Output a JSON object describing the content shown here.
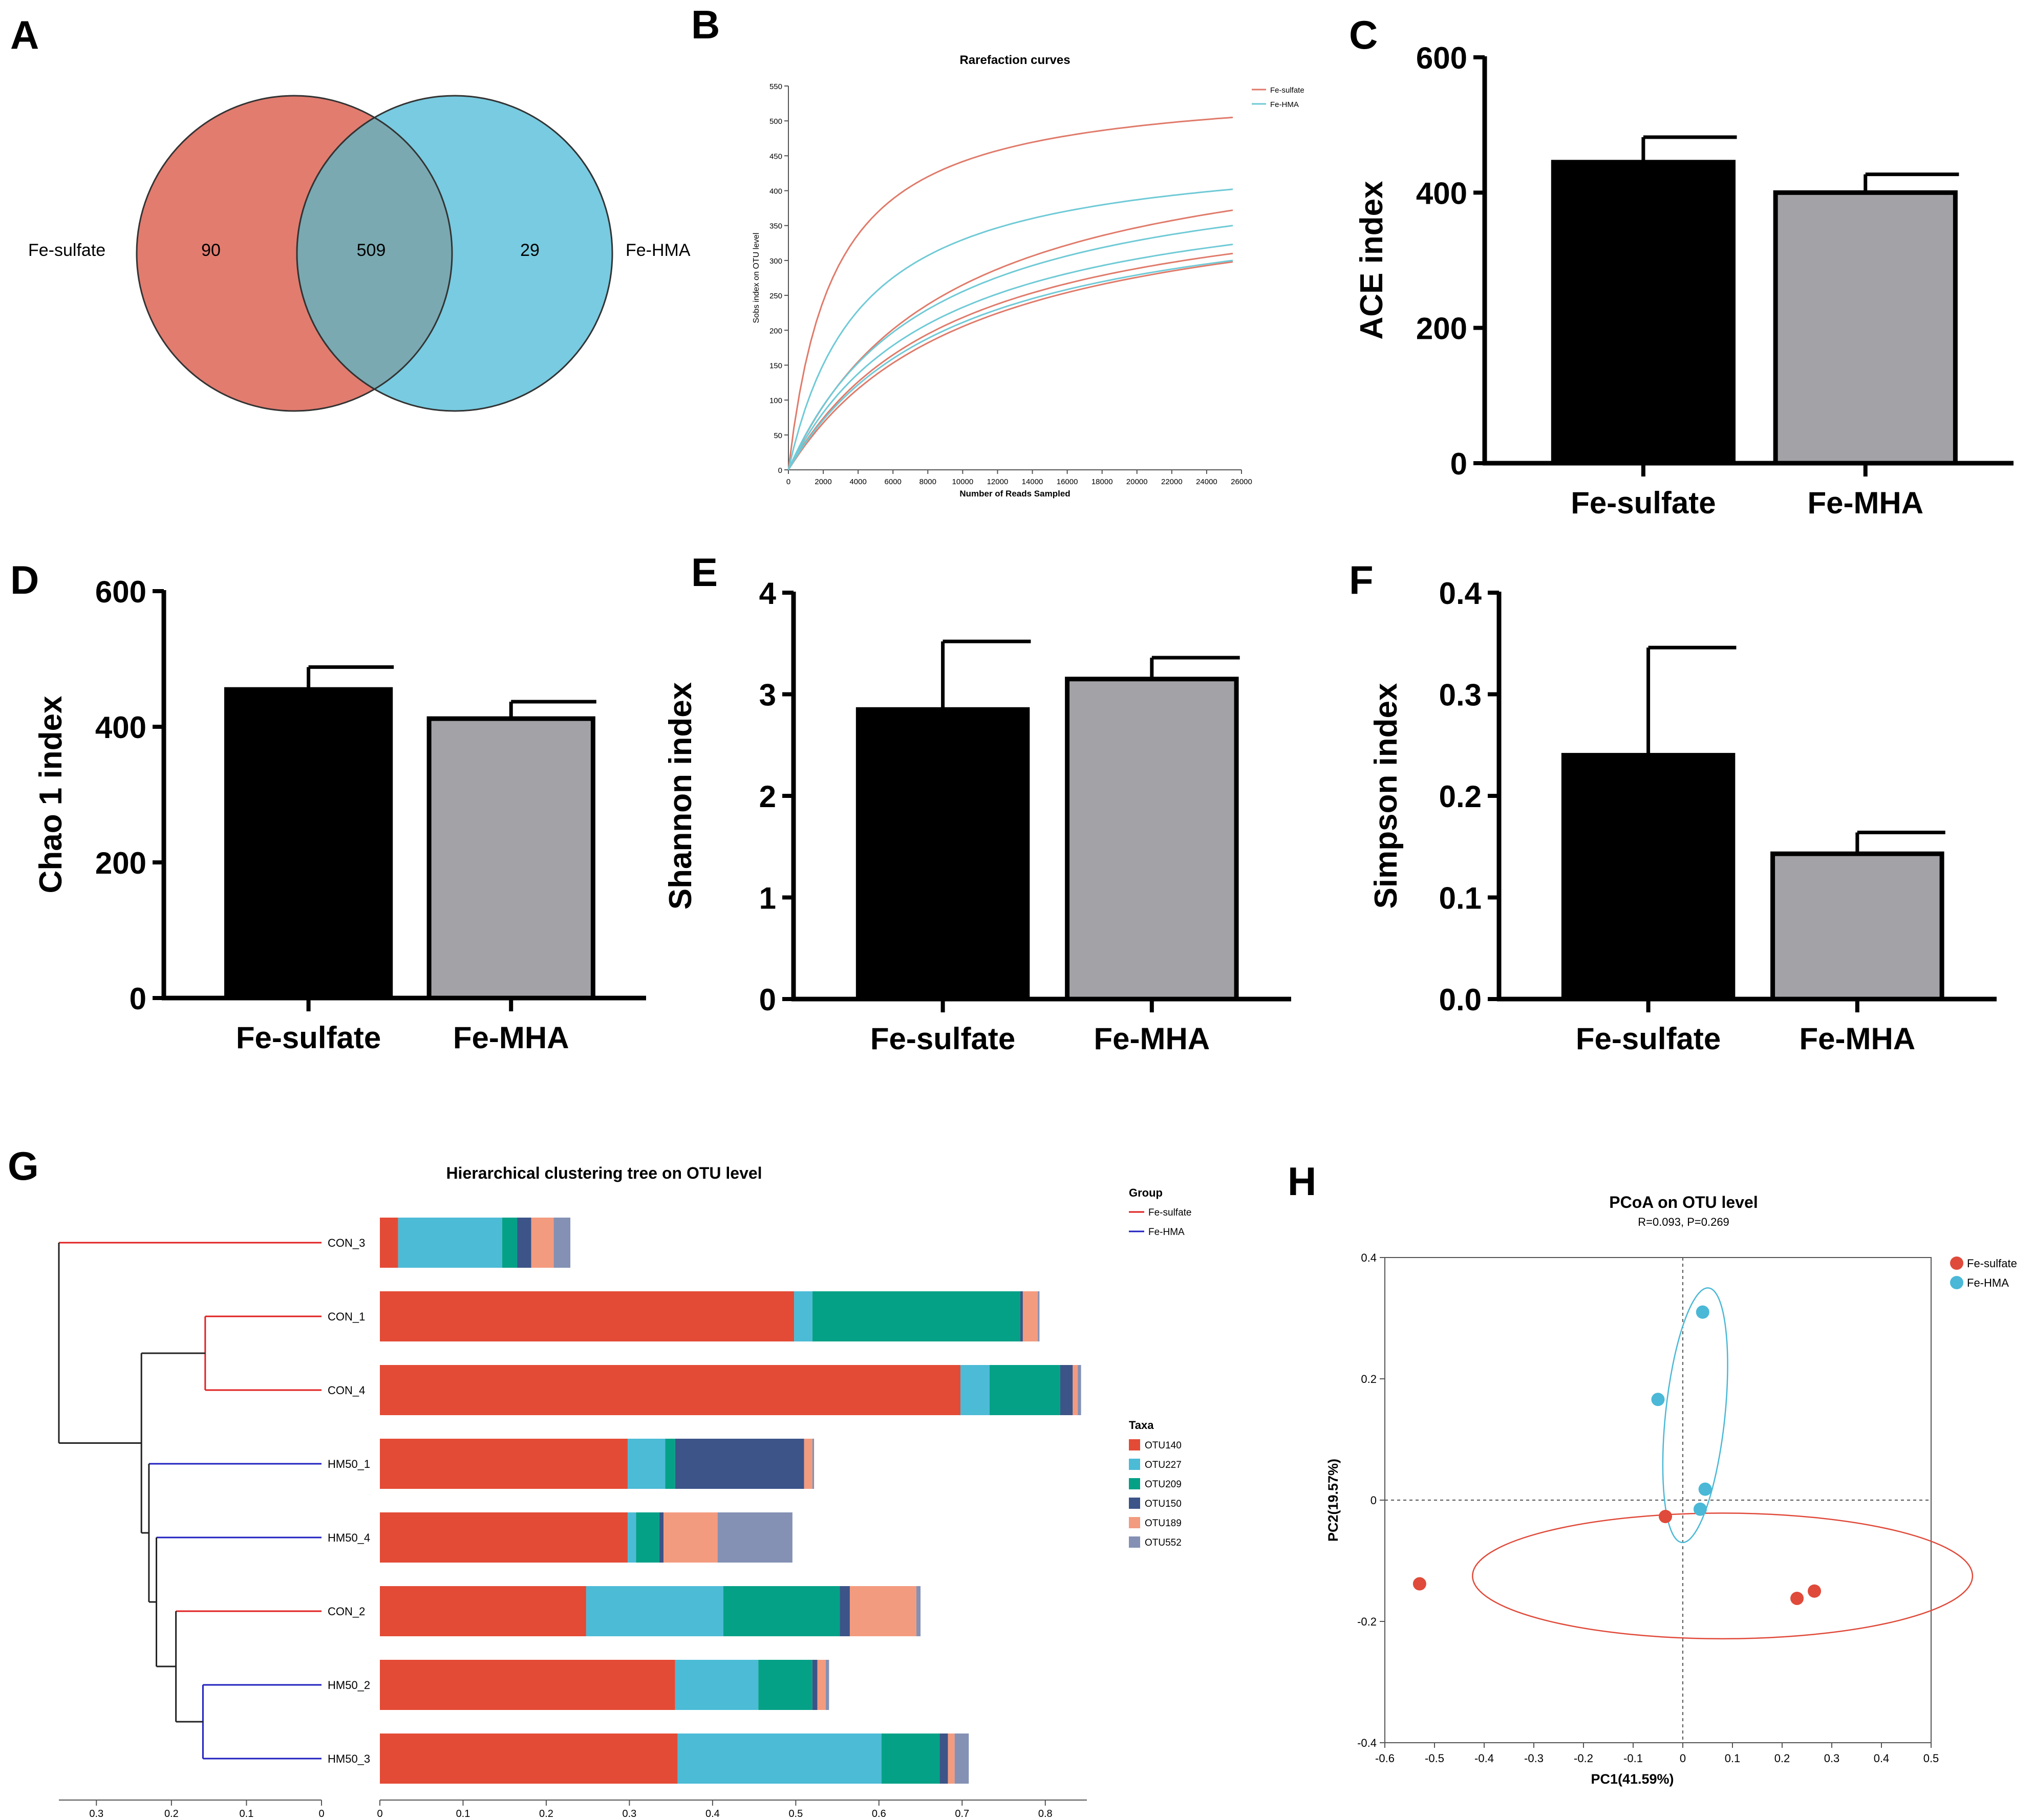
{
  "panel_labels": [
    "A",
    "B",
    "C",
    "D",
    "E",
    "F",
    "G",
    "H"
  ],
  "colors": {
    "fe_sulfate": "#e27c6f",
    "fe_mha": "#78cbe0",
    "overlap": "#7aa9b2",
    "bar_black": "#000000",
    "bar_gray": "#a3a3a7",
    "red_curve": "#e07a6a",
    "cyan_curve": "#6fcad6",
    "tree_red": "#e02020",
    "tree_blue": "#2020c0",
    "pcoa_red": "#e04a3a",
    "pcoa_cyan": "#4ab8d6"
  },
  "venn": {
    "left_label": "Fe-sulfate",
    "right_label": "Fe-HMA",
    "left_only": "90",
    "overlap": "509",
    "right_only": "29"
  },
  "chart_data": [
    {
      "id": "B",
      "type": "line",
      "title": "Rarefaction curves",
      "xlabel": "Number of Reads Sampled",
      "ylabel": "Sobs index on OTU level",
      "xlim": [
        0,
        26000
      ],
      "ylim": [
        0,
        550
      ],
      "xticks": [
        0,
        2000,
        4000,
        6000,
        8000,
        10000,
        12000,
        14000,
        16000,
        18000,
        20000,
        22000,
        24000,
        26000
      ],
      "yticks": [
        0,
        50,
        100,
        150,
        200,
        250,
        300,
        350,
        400,
        450,
        500,
        550
      ],
      "legend": [
        "Fe-sulfate",
        "Fe-HMA"
      ],
      "series": [
        {
          "name": "Fe-sulfate",
          "final": 505,
          "half": [
            2600,
            2600
          ]
        },
        {
          "name": "Fe-sulfate",
          "final": 372,
          "half": [
            9000,
            9000
          ]
        },
        {
          "name": "Fe-sulfate",
          "final": 310,
          "half": [
            9500,
            9500
          ]
        },
        {
          "name": "Fe-sulfate",
          "final": 298,
          "half": [
            10500,
            10500
          ]
        },
        {
          "name": "Fe-HMA",
          "final": 402,
          "half": [
            4200,
            4200
          ]
        },
        {
          "name": "Fe-HMA",
          "final": 350,
          "half": [
            8000,
            8000
          ]
        },
        {
          "name": "Fe-HMA",
          "final": 323,
          "half": [
            8500,
            8500
          ]
        },
        {
          "name": "Fe-HMA",
          "final": 300,
          "half": [
            9500,
            9500
          ]
        }
      ]
    },
    {
      "id": "C",
      "type": "bar",
      "categories": [
        "Fe-sulfate",
        "Fe-MHA"
      ],
      "values": [
        445,
        400
      ],
      "errors": [
        37,
        27
      ],
      "ylabel": "ACE index",
      "ylim": [
        0,
        600
      ],
      "yticks": [
        "0",
        "200",
        "400",
        "600"
      ]
    },
    {
      "id": "D",
      "type": "bar",
      "categories": [
        "Fe-sulfate",
        "Fe-MHA"
      ],
      "values": [
        455,
        412
      ],
      "errors": [
        33,
        25
      ],
      "ylabel": "Chao 1 index",
      "ylim": [
        0,
        600
      ],
      "yticks": [
        "0",
        "200",
        "400",
        "600"
      ]
    },
    {
      "id": "E",
      "type": "bar",
      "categories": [
        "Fe-sulfate",
        "Fe-MHA"
      ],
      "values": [
        2.85,
        3.15
      ],
      "errors": [
        0.67,
        0.21
      ],
      "ylabel": "Shannon index",
      "ylim": [
        0,
        4
      ],
      "yticks": [
        "0",
        "1",
        "2",
        "3",
        "4"
      ]
    },
    {
      "id": "F",
      "type": "bar",
      "categories": [
        "Fe-sulfate",
        "Fe-MHA"
      ],
      "values": [
        0.24,
        0.143
      ],
      "errors": [
        0.106,
        0.021
      ],
      "ylabel": "Simpson index",
      "ylim": [
        0,
        0.4
      ],
      "yticks": [
        "0.0",
        "0.1",
        "0.2",
        "0.3",
        "0.4"
      ]
    },
    {
      "id": "G",
      "type": "bar",
      "orientation": "horizontal-stacked",
      "title": "Hierarchical clustering tree on OTU level",
      "categories": [
        "CON_3",
        "CON_1",
        "CON_4",
        "HM50_1",
        "HM50_4",
        "CON_2",
        "HM50_2",
        "HM50_3"
      ],
      "series": [
        {
          "name": "OTU140",
          "color": "#e34b36",
          "values": [
            0.022,
            0.498,
            0.698,
            0.298,
            0.298,
            0.248,
            0.355,
            0.358
          ]
        },
        {
          "name": "OTU227",
          "color": "#4cbbd6",
          "values": [
            0.125,
            0.022,
            0.035,
            0.045,
            0.01,
            0.165,
            0.1,
            0.245
          ]
        },
        {
          "name": "OTU209",
          "color": "#05a187",
          "values": [
            0.018,
            0.25,
            0.085,
            0.012,
            0.028,
            0.14,
            0.065,
            0.07
          ]
        },
        {
          "name": "OTU150",
          "color": "#3c5488",
          "values": [
            0.017,
            0.003,
            0.015,
            0.155,
            0.005,
            0.012,
            0.006,
            0.01
          ]
        },
        {
          "name": "OTU189",
          "color": "#f39b7f",
          "values": [
            0.027,
            0.018,
            0.006,
            0.01,
            0.065,
            0.08,
            0.01,
            0.008
          ]
        },
        {
          "name": "OTU552",
          "color": "#8491b4",
          "values": [
            0.02,
            0.002,
            0.004,
            0.002,
            0.09,
            0.005,
            0.004,
            0.017
          ]
        }
      ],
      "xticks": [
        "0",
        "0.1",
        "0.2",
        "0.3",
        "0.4",
        "0.5",
        "0.6",
        "0.7",
        "0.8"
      ],
      "tree_xticks": [
        "0.3",
        "0.2",
        "0.1",
        "0"
      ],
      "group_legend_title": "Group",
      "group_legend": [
        "Fe-sulfate",
        "Fe-HMA"
      ],
      "taxa_legend_title": "Taxa"
    },
    {
      "id": "H",
      "type": "scatter",
      "title": "PCoA on OTU level",
      "subtitle": "R=0.093, P=0.269",
      "xlabel": "PC1(41.59%)",
      "ylabel": "PC2(19.57%)",
      "xlim": [
        -0.6,
        0.5
      ],
      "ylim": [
        -0.4,
        0.4
      ],
      "xticks": [
        "-0.6",
        "-0.5",
        "-0.4",
        "-0.3",
        "-0.2",
        "-0.1",
        "0",
        "0.1",
        "0.2",
        "0.3",
        "0.4",
        "0.5"
      ],
      "yticks": [
        "-0.4",
        "-0.2",
        "0",
        "0.2",
        "0.4"
      ],
      "legend": [
        "Fe-sulfate",
        "Fe-HMA"
      ],
      "series": [
        {
          "name": "Fe-sulfate",
          "points": [
            [
              -0.53,
              -0.138
            ],
            [
              -0.035,
              -0.027
            ],
            [
              0.23,
              -0.162
            ],
            [
              0.265,
              -0.15
            ]
          ]
        },
        {
          "name": "Fe-HMA",
          "points": [
            [
              0.04,
              0.31
            ],
            [
              -0.05,
              0.166
            ],
            [
              0.045,
              0.018
            ],
            [
              0.035,
              -0.015
            ]
          ]
        }
      ]
    }
  ]
}
